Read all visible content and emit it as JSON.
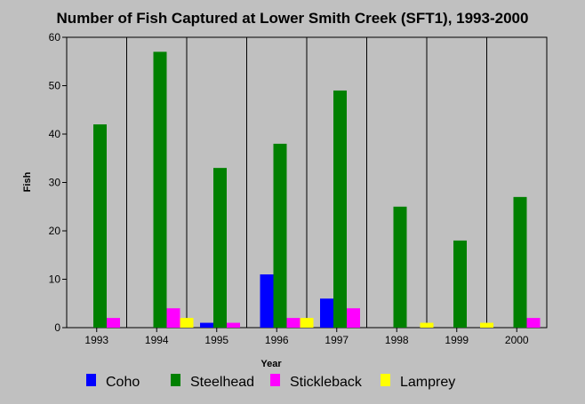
{
  "chart_data": {
    "type": "bar",
    "title": "Number of Fish Captured at Lower Smith Creek (SFT1), 1993-2000",
    "xlabel": "Year",
    "ylabel": "Fish",
    "ylim": [
      0,
      60
    ],
    "yticks": [
      0,
      10,
      20,
      30,
      40,
      50,
      60
    ],
    "grid": "vertical lines between categories",
    "legend_position": "bottom",
    "categories": [
      "1993",
      "1994",
      "1995",
      "1996",
      "1997",
      "1998",
      "1999",
      "2000"
    ],
    "series": [
      {
        "name": "Coho",
        "color": "#0000ff",
        "values": [
          0,
          0,
          1,
          11,
          6,
          0,
          0,
          0
        ]
      },
      {
        "name": "Steelhead",
        "color": "#008000",
        "values": [
          42,
          57,
          33,
          38,
          49,
          25,
          18,
          27
        ]
      },
      {
        "name": "Stickleback",
        "color": "#ff00ff",
        "values": [
          2,
          4,
          1,
          2,
          4,
          0,
          0,
          2
        ]
      },
      {
        "name": "Lamprey",
        "color": "#ffff00",
        "values": [
          0,
          2,
          0,
          2,
          0,
          1,
          1,
          0
        ]
      }
    ]
  }
}
